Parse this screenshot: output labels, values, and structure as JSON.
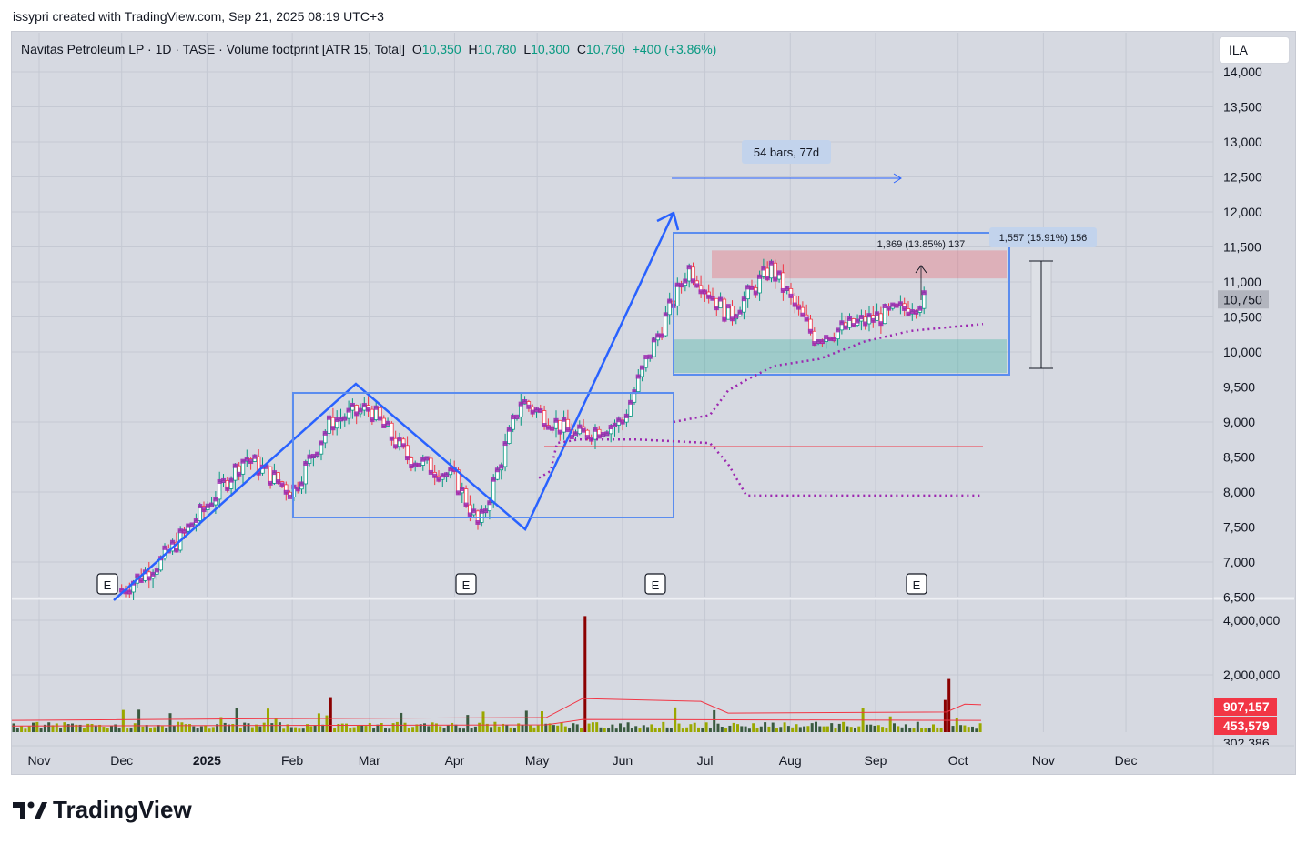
{
  "header": {
    "created_by": "issypri created with TradingView.com, Sep 21, 2025 08:19 UTC+3"
  },
  "legend": {
    "symbol": "Navitas Petroleum LP · 1D · TASE · Volume footprint [ATR 15, Total]",
    "o_label": "O",
    "o_value": "10,350",
    "h_label": "H",
    "h_value": "10,780",
    "l_label": "L",
    "l_value": "10,300",
    "c_label": "C",
    "c_value": "10,750",
    "change": "+400 (+3.86%)"
  },
  "currency_button": "ILA",
  "brand": {
    "name": "TradingView"
  },
  "colors": {
    "up": "#089981",
    "down": "#f23645",
    "footprint": "#9c27b0",
    "drawing": "#2962ff",
    "background": "#d6d9e1",
    "hline": "#f23645"
  },
  "annotations": {
    "range_label": "54 bars, 77d",
    "measure_inner": "1,369 (13.85%) 137",
    "measure_outer": "1,557 (15.91%) 156",
    "earnings_marker": "E",
    "price_tag": "10,750",
    "vol_ma_tag_1": "907,157",
    "vol_ma_tag_2": "453,579",
    "vol_cut_tag": "302,386"
  },
  "chart_data": {
    "type": "candlestick",
    "title": "Navitas Petroleum LP · 1D · TASE",
    "price_axis": {
      "ticks": [
        "6,500",
        "7,000",
        "7,500",
        "8,000",
        "8,500",
        "9,000",
        "9,500",
        "10,000",
        "10,500",
        "11,000",
        "11,500",
        "12,000",
        "12,500",
        "13,000",
        "13,500",
        "14,000"
      ],
      "ylim": [
        6500,
        14000
      ]
    },
    "volume_axis": {
      "ticks": [
        "2,000,000",
        "4,000,000"
      ]
    },
    "time_axis": {
      "ticks": [
        "Nov",
        "Dec",
        "2025",
        "Feb",
        "Mar",
        "Apr",
        "May",
        "Jun",
        "Jul",
        "Aug",
        "Sep",
        "Oct",
        "Nov",
        "Dec"
      ],
      "range": [
        "2024-11-01",
        "2025-12-31"
      ]
    },
    "series": [
      {
        "name": "Price",
        "x": [
          "2024-12-01",
          "2024-12-15",
          "2025-01-01",
          "2025-01-15",
          "2025-02-01",
          "2025-02-15",
          "2025-03-01",
          "2025-03-15",
          "2025-04-01",
          "2025-04-10",
          "2025-04-25",
          "2025-05-15",
          "2025-06-01",
          "2025-06-10",
          "2025-06-25",
          "2025-07-10",
          "2025-07-25",
          "2025-08-10",
          "2025-08-25",
          "2025-09-10",
          "2025-09-19"
        ],
        "values": [
          6600,
          7000,
          7800,
          8500,
          8000,
          9000,
          9200,
          8500,
          8200,
          7500,
          9300,
          8800,
          9000,
          9900,
          11200,
          10500,
          11200,
          10200,
          10400,
          10600,
          10750
        ]
      }
    ],
    "levels": {
      "support_line": 8650,
      "vwap_line": 7950
    },
    "zones": {
      "resistance": [
        11050,
        11450
      ],
      "support": [
        9700,
        10180
      ]
    }
  }
}
